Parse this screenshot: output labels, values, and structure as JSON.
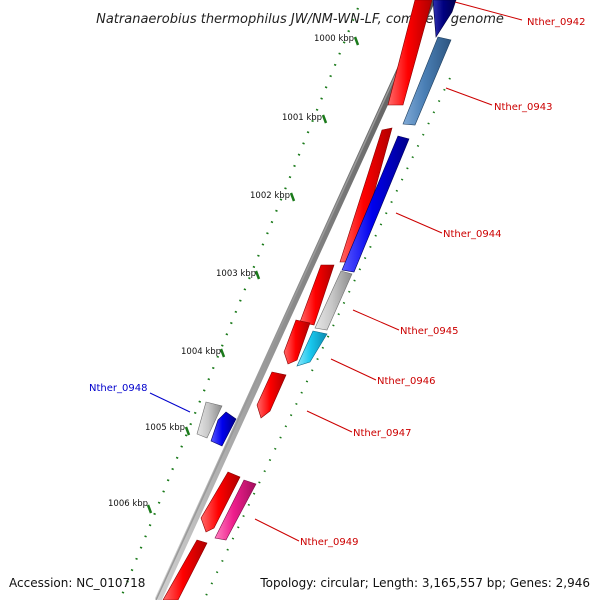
{
  "title": "Natranaerobius thermophilus JW/NM-WN-LF, complete genome",
  "footer": {
    "accession": "Accession: NC_010718",
    "summary": "Topology: circular; Length: 3,165,557 bp; Genes: 2,946"
  },
  "colors": {
    "forward": "#ff0000",
    "reverse": "#0000ee",
    "hypothetical": "#c8c8c8",
    "steelblue": "#4a7fb5",
    "cyan": "#19c8ee",
    "magenta": "#ee1e8c",
    "navy": "#000080",
    "tick": "#1a7a1a",
    "label_red": "#cc0000",
    "label_blue": "#0000cc"
  },
  "scale": {
    "ticks": [
      {
        "label": "1000 kbp"
      },
      {
        "label": "1001 kbp"
      },
      {
        "label": "1002 kbp"
      },
      {
        "label": "1003 kbp"
      },
      {
        "label": "1004 kbp"
      },
      {
        "label": "1005 kbp"
      },
      {
        "label": "1006 kbp"
      }
    ]
  },
  "gene_labels": [
    {
      "name": "Nther_0942",
      "color": "red"
    },
    {
      "name": "Nther_0943",
      "color": "red"
    },
    {
      "name": "Nther_0944",
      "color": "red"
    },
    {
      "name": "Nther_0945",
      "color": "red"
    },
    {
      "name": "Nther_0946",
      "color": "red"
    },
    {
      "name": "Nther_0947",
      "color": "red"
    },
    {
      "name": "Nther_0948",
      "color": "blue"
    },
    {
      "name": "Nther_0949",
      "color": "red"
    }
  ]
}
